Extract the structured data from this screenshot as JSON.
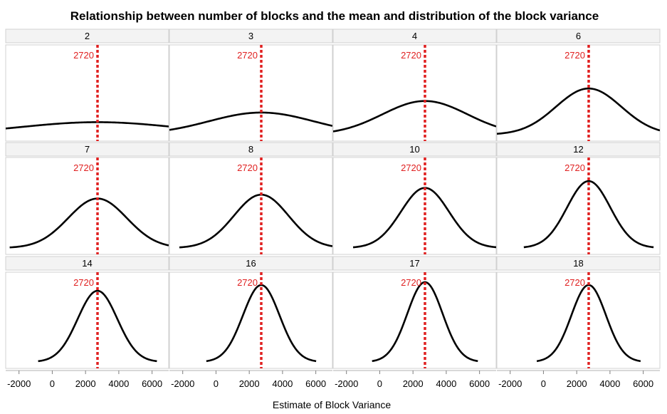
{
  "chart_data": {
    "type": "line",
    "title": "Relationship between number of blocks and the mean and distribution of the block variance",
    "xlabel": "Estimate of Block Variance",
    "ylabel": "",
    "xlim": [
      -2800,
      7000
    ],
    "xticks": [
      -2000,
      0,
      2000,
      4000,
      6000
    ],
    "tick_labels": [
      "-2000",
      "0",
      "2000",
      "4000",
      "6000"
    ],
    "grid": false,
    "layout": "3 rows x 4 columns facet grid",
    "reference_line": {
      "value": 2720,
      "label": "2720",
      "style": "dotted",
      "color": "#e02020"
    },
    "line_color": "#000000",
    "facets": [
      {
        "label": "2",
        "mean": 2720,
        "sd": 4650,
        "peak_frac": 0.13
      },
      {
        "label": "3",
        "mean": 2720,
        "sd": 3150,
        "peak_frac": 0.23
      },
      {
        "label": "4",
        "mean": 2720,
        "sd": 2550,
        "peak_frac": 0.35
      },
      {
        "label": "6",
        "mean": 2720,
        "sd": 1960,
        "peak_frac": 0.48
      },
      {
        "label": "7",
        "mean": 2720,
        "sd": 1760,
        "peak_frac": 0.51
      },
      {
        "label": "8",
        "mean": 2720,
        "sd": 1640,
        "peak_frac": 0.55
      },
      {
        "label": "10",
        "mean": 2720,
        "sd": 1440,
        "peak_frac": 0.62
      },
      {
        "label": "12",
        "mean": 2720,
        "sd": 1300,
        "peak_frac": 0.69
      },
      {
        "label": "14",
        "mean": 2720,
        "sd": 1190,
        "peak_frac": 0.74
      },
      {
        "label": "16",
        "mean": 2720,
        "sd": 1100,
        "peak_frac": 0.8
      },
      {
        "label": "17",
        "mean": 2720,
        "sd": 1060,
        "peak_frac": 0.83
      },
      {
        "label": "18",
        "mean": 2720,
        "sd": 1040,
        "peak_frac": 0.8
      }
    ]
  }
}
